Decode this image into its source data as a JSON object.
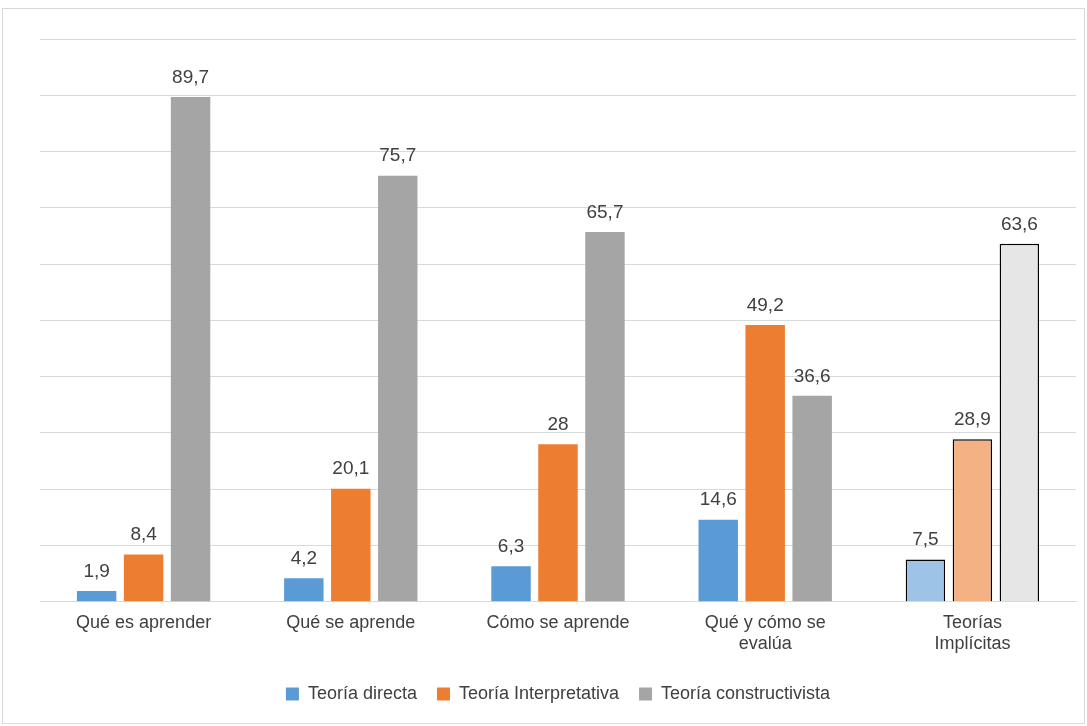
{
  "chart_data": {
    "type": "bar",
    "categories": [
      "Qué es aprender",
      "Qué se aprende",
      "Cómo se aprende",
      "Qué y cómo se evalúa",
      "Teorías Implícitas"
    ],
    "series": [
      {
        "name": "Teoría directa",
        "color": "#5b9bd5",
        "colors": [
          "#5b9bd5",
          "#5b9bd5",
          "#5b9bd5",
          "#5b9bd5",
          "#9dc3e6"
        ],
        "values": [
          1.9,
          4.2,
          6.3,
          14.6,
          7.5
        ],
        "value_labels": [
          "1,9",
          "4,2",
          "6,3",
          "14,6",
          "7,5"
        ]
      },
      {
        "name": "Teoría Interpretativa",
        "color": "#ed7d31",
        "colors": [
          "#ed7d31",
          "#ed7d31",
          "#ed7d31",
          "#ed7d31",
          "#f4b183"
        ],
        "values": [
          8.4,
          20.1,
          28,
          49.2,
          28.9
        ],
        "value_labels": [
          "8,4",
          "20,1",
          "28",
          "49,2",
          "28,9"
        ]
      },
      {
        "name": "Teoría constructivista",
        "color": "#a5a5a5",
        "colors": [
          "#a5a5a5",
          "#a5a5a5",
          "#a5a5a5",
          "#a5a5a5",
          "#e7e6e6"
        ],
        "values": [
          89.7,
          75.7,
          65.7,
          36.6,
          63.6
        ],
        "value_labels": [
          "89,7",
          "75,7",
          "65,7",
          "36,6",
          "63,6"
        ]
      }
    ],
    "ylim": [
      0,
      100
    ],
    "yticks": [
      {
        "value": 0,
        "label": null
      },
      {
        "value": 10,
        "label": null
      },
      {
        "value": 20,
        "label": null
      },
      {
        "value": 30,
        "label": null
      },
      {
        "value": 40,
        "label": null
      },
      {
        "value": 50,
        "label": null
      },
      {
        "value": 60,
        "label": null
      },
      {
        "value": 70,
        "label": null
      },
      {
        "value": 80,
        "label": null
      },
      {
        "value": 90,
        "label": null
      },
      {
        "value": 100,
        "label": null
      }
    ],
    "tick_labels": "x",
    "grid": "y",
    "legend": "bottom"
  }
}
